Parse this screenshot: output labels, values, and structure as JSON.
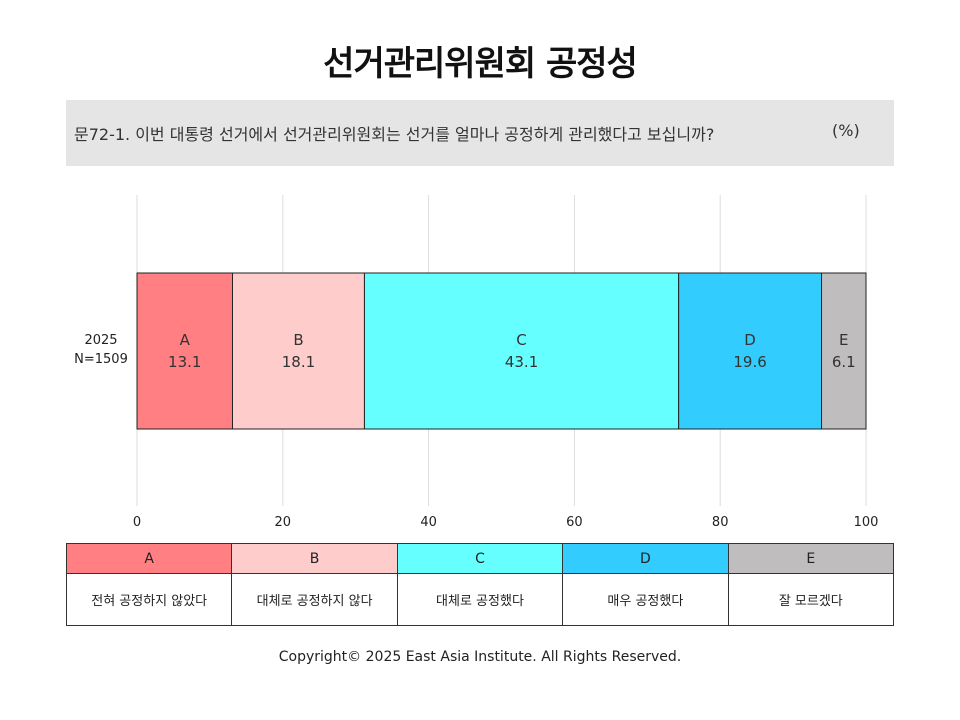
{
  "title": "선거관리위원회 공정성",
  "question": "문72-1. 이번 대통령 선거에서 선거관리위원회는 선거를 얼마나 공정하게 관리했다고 보십니까?",
  "unit": "(%)",
  "chart_data": {
    "type": "bar",
    "orientation": "horizontal",
    "stacked": true,
    "row": {
      "label_line1": "2025",
      "label_line2": "N=1509"
    },
    "xlim": [
      0,
      100
    ],
    "xticks": [
      0,
      20,
      40,
      60,
      80,
      100
    ],
    "grid": true,
    "series": [
      {
        "name": "A",
        "value": 13.1,
        "color": "#ff7f83"
      },
      {
        "name": "B",
        "value": 18.1,
        "color": "#ffcccc"
      },
      {
        "name": "C",
        "value": 43.1,
        "color": "#66ffff"
      },
      {
        "name": "D",
        "value": 19.6,
        "color": "#33ccff"
      },
      {
        "name": "E",
        "value": 6.1,
        "color": "#bfbdbd"
      }
    ]
  },
  "legend": [
    {
      "key": "A",
      "label": "전혀 공정하지 않았다",
      "color": "#ff7f83"
    },
    {
      "key": "B",
      "label": "대체로 공정하지 않다",
      "color": "#ffcccc"
    },
    {
      "key": "C",
      "label": "대체로 공정했다",
      "color": "#66ffff"
    },
    {
      "key": "D",
      "label": "매우 공정했다",
      "color": "#33ccff"
    },
    {
      "key": "E",
      "label": "잘 모르겠다",
      "color": "#bfbdbd"
    }
  ],
  "footer": "Copyright© 2025 East Asia Institute. All Rights Reserved."
}
